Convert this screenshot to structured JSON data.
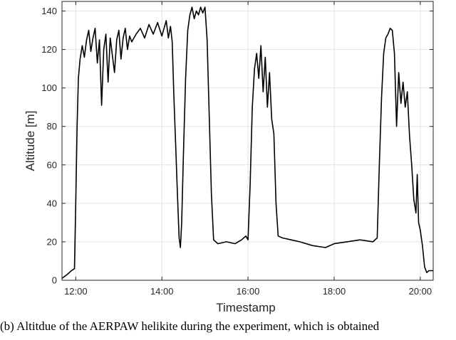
{
  "chart_data": {
    "type": "line",
    "xlabel": "Timestamp",
    "ylabel": "Altitude [m]",
    "x_ticks": [
      "12:00",
      "14:00",
      "16:00",
      "18:00",
      "20:00"
    ],
    "x_tick_hours": [
      12,
      14,
      16,
      18,
      20
    ],
    "y_ticks": [
      0,
      20,
      40,
      60,
      80,
      100,
      120,
      140
    ],
    "xlim_hours": [
      11.68,
      20.3
    ],
    "ylim": [
      0,
      145
    ],
    "grid": true,
    "series": [
      {
        "color": "#000000",
        "points_hours_m": [
          [
            11.68,
            1
          ],
          [
            11.8,
            3
          ],
          [
            11.9,
            5
          ],
          [
            11.97,
            6
          ],
          [
            12.0,
            40
          ],
          [
            12.03,
            80
          ],
          [
            12.06,
            105
          ],
          [
            12.1,
            115
          ],
          [
            12.15,
            122
          ],
          [
            12.2,
            116
          ],
          [
            12.25,
            125
          ],
          [
            12.3,
            130
          ],
          [
            12.35,
            119
          ],
          [
            12.4,
            126
          ],
          [
            12.45,
            131
          ],
          [
            12.5,
            113
          ],
          [
            12.55,
            125
          ],
          [
            12.6,
            91
          ],
          [
            12.65,
            120
          ],
          [
            12.7,
            128
          ],
          [
            12.75,
            103
          ],
          [
            12.8,
            126
          ],
          [
            12.85,
            117
          ],
          [
            12.9,
            108
          ],
          [
            12.95,
            125
          ],
          [
            13.0,
            130
          ],
          [
            13.05,
            115
          ],
          [
            13.1,
            126
          ],
          [
            13.15,
            131
          ],
          [
            13.2,
            120
          ],
          [
            13.25,
            127
          ],
          [
            13.3,
            124
          ],
          [
            13.4,
            128
          ],
          [
            13.5,
            131
          ],
          [
            13.6,
            126
          ],
          [
            13.7,
            133
          ],
          [
            13.8,
            128
          ],
          [
            13.9,
            134
          ],
          [
            14.0,
            127
          ],
          [
            14.1,
            135
          ],
          [
            14.15,
            126
          ],
          [
            14.2,
            132
          ],
          [
            14.24,
            124
          ],
          [
            14.28,
            95
          ],
          [
            14.32,
            70
          ],
          [
            14.36,
            45
          ],
          [
            14.4,
            22
          ],
          [
            14.43,
            17
          ],
          [
            14.46,
            30
          ],
          [
            14.5,
            65
          ],
          [
            14.55,
            105
          ],
          [
            14.6,
            130
          ],
          [
            14.65,
            138
          ],
          [
            14.7,
            142
          ],
          [
            14.75,
            136
          ],
          [
            14.8,
            140
          ],
          [
            14.85,
            138
          ],
          [
            14.9,
            142
          ],
          [
            14.95,
            139
          ],
          [
            15.0,
            142
          ],
          [
            15.05,
            125
          ],
          [
            15.1,
            85
          ],
          [
            15.15,
            45
          ],
          [
            15.2,
            21
          ],
          [
            15.3,
            19
          ],
          [
            15.5,
            20
          ],
          [
            15.7,
            19
          ],
          [
            15.85,
            21
          ],
          [
            15.95,
            23
          ],
          [
            16.0,
            21
          ],
          [
            16.05,
            50
          ],
          [
            16.1,
            90
          ],
          [
            16.15,
            110
          ],
          [
            16.2,
            118
          ],
          [
            16.25,
            105
          ],
          [
            16.3,
            122
          ],
          [
            16.35,
            98
          ],
          [
            16.4,
            116
          ],
          [
            16.45,
            90
          ],
          [
            16.5,
            108
          ],
          [
            16.55,
            84
          ],
          [
            16.6,
            76
          ],
          [
            16.65,
            40
          ],
          [
            16.7,
            23
          ],
          [
            16.8,
            22
          ],
          [
            17.0,
            21
          ],
          [
            17.2,
            20
          ],
          [
            17.5,
            18
          ],
          [
            17.8,
            17
          ],
          [
            18.0,
            19
          ],
          [
            18.3,
            20
          ],
          [
            18.6,
            21
          ],
          [
            18.9,
            20
          ],
          [
            19.0,
            22
          ],
          [
            19.05,
            60
          ],
          [
            19.1,
            95
          ],
          [
            19.15,
            118
          ],
          [
            19.2,
            126
          ],
          [
            19.25,
            128
          ],
          [
            19.3,
            131
          ],
          [
            19.35,
            130
          ],
          [
            19.4,
            118
          ],
          [
            19.45,
            80
          ],
          [
            19.5,
            108
          ],
          [
            19.55,
            92
          ],
          [
            19.6,
            103
          ],
          [
            19.65,
            90
          ],
          [
            19.7,
            98
          ],
          [
            19.75,
            75
          ],
          [
            19.8,
            60
          ],
          [
            19.85,
            42
          ],
          [
            19.9,
            35
          ],
          [
            19.93,
            55
          ],
          [
            19.96,
            30
          ],
          [
            20.0,
            26
          ],
          [
            20.05,
            18
          ],
          [
            20.1,
            7
          ],
          [
            20.15,
            4
          ],
          [
            20.2,
            5
          ],
          [
            20.3,
            5
          ]
        ]
      }
    ]
  },
  "caption": "(b) Altitdue of the AERPAW helikite during the experiment, which is obtained"
}
